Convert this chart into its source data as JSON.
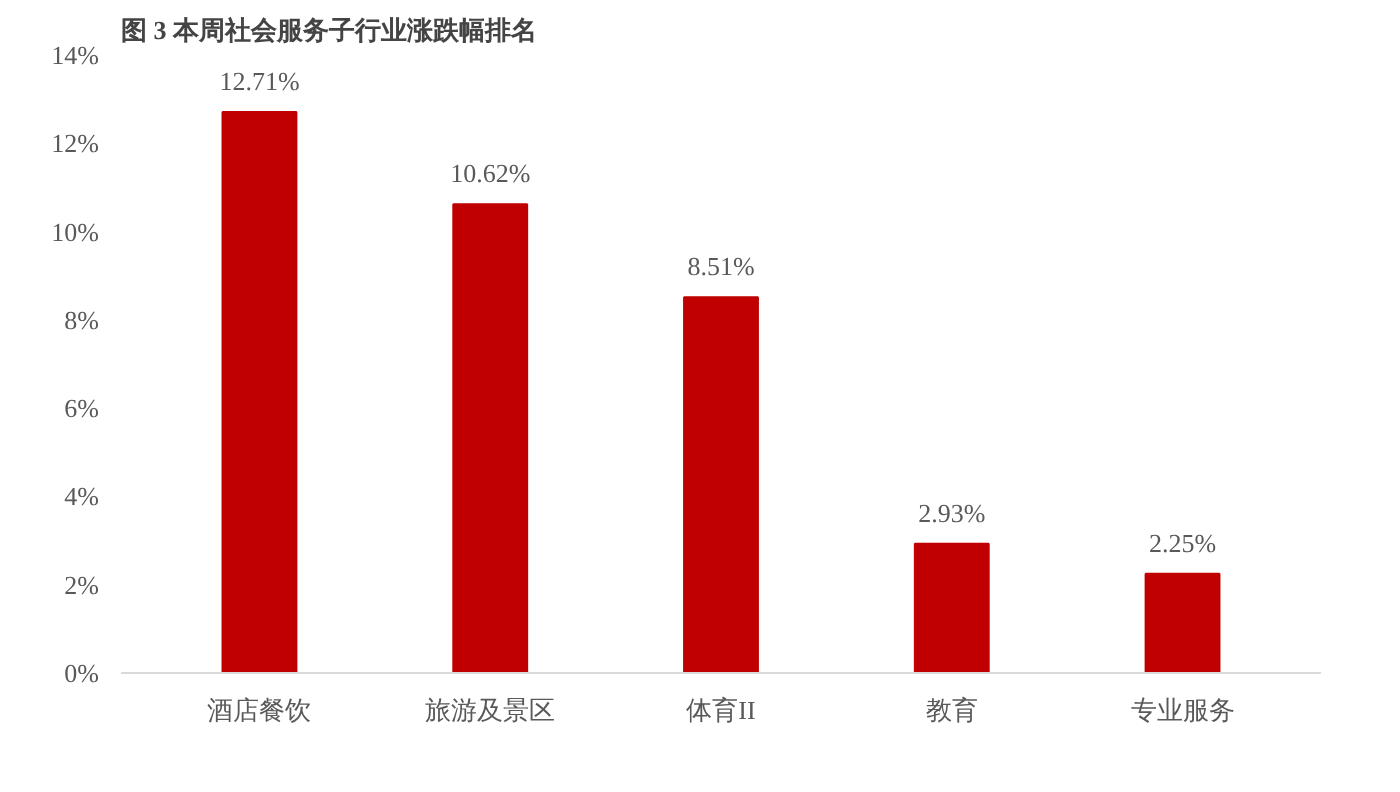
{
  "chart_data": {
    "type": "bar",
    "title": "图 3   本周社会服务子行业涨跌幅排名",
    "categories": [
      "酒店餐饮",
      "旅游及景区",
      "体育II",
      "教育",
      "专业服务"
    ],
    "values": [
      12.71,
      10.62,
      8.51,
      2.93,
      2.25
    ],
    "value_labels": [
      "12.71%",
      "10.62%",
      "8.51%",
      "2.93%",
      "2.25%"
    ],
    "color": "#c00000",
    "ylim": [
      0,
      14
    ],
    "yticks": [
      {
        "value": 0,
        "label": "0%"
      },
      {
        "value": 2,
        "label": "2%"
      },
      {
        "value": 4,
        "label": "4%"
      },
      {
        "value": 6,
        "label": "6%"
      },
      {
        "value": 8,
        "label": "8%"
      },
      {
        "value": 10,
        "label": "10%"
      },
      {
        "value": 12,
        "label": "12%"
      },
      {
        "value": 14,
        "label": "14%"
      }
    ],
    "grid": false
  }
}
